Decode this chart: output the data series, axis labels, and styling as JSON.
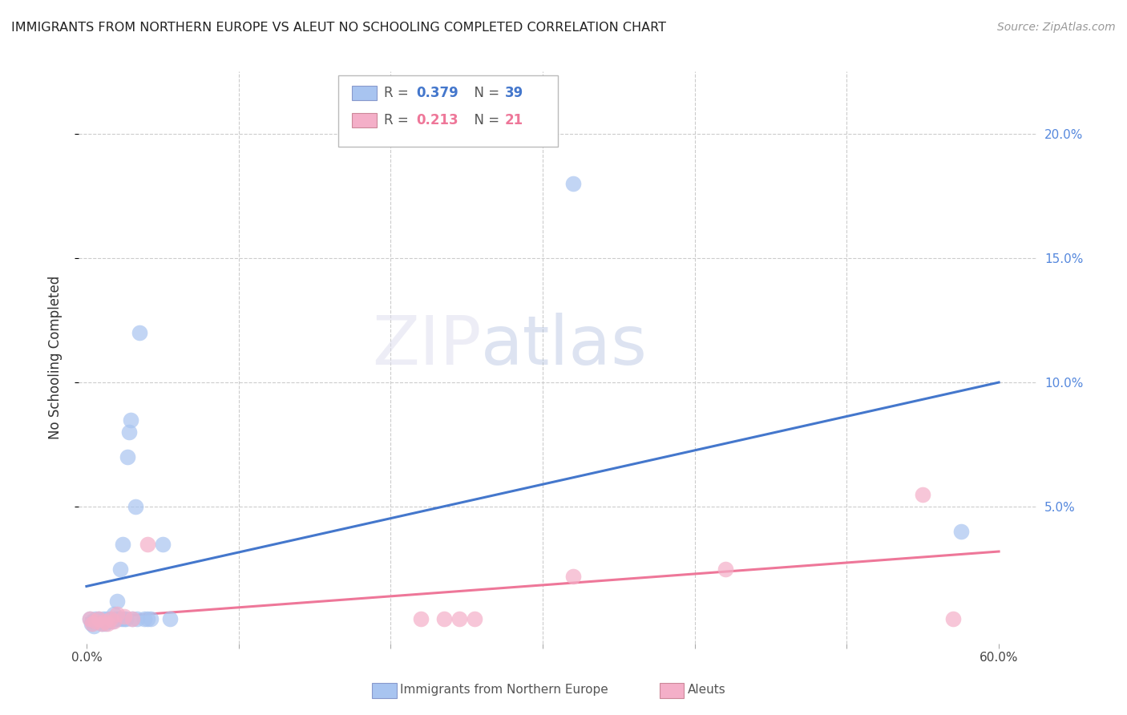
{
  "title": "IMMIGRANTS FROM NORTHERN EUROPE VS ALEUT NO SCHOOLING COMPLETED CORRELATION CHART",
  "source": "Source: ZipAtlas.com",
  "xlabel_blue": "Immigrants from Northern Europe",
  "xlabel_pink": "Aleuts",
  "ylabel": "No Schooling Completed",
  "xlim": [
    -0.005,
    0.625
  ],
  "ylim": [
    -0.005,
    0.225
  ],
  "xticks": [
    0.0,
    0.1,
    0.2,
    0.3,
    0.4,
    0.5,
    0.6
  ],
  "xticklabels": [
    "0.0%",
    "",
    "",
    "",
    "",
    "",
    "60.0%"
  ],
  "yticks": [
    0.05,
    0.1,
    0.15,
    0.2
  ],
  "yticklabels_right": [
    "5.0%",
    "10.0%",
    "15.0%",
    "20.0%"
  ],
  "legend_blue_r": "0.379",
  "legend_blue_n": "39",
  "legend_pink_r": "0.213",
  "legend_pink_n": "21",
  "blue_color": "#a8c4f0",
  "pink_color": "#f4afc8",
  "blue_line_color": "#4477cc",
  "pink_line_color": "#ee7799",
  "yaxis_color": "#5588dd",
  "watermark_zip": "ZIP",
  "watermark_atlas": "atlas",
  "blue_scatter_x": [
    0.002,
    0.003,
    0.004,
    0.005,
    0.006,
    0.007,
    0.008,
    0.009,
    0.01,
    0.011,
    0.012,
    0.013,
    0.014,
    0.015,
    0.016,
    0.017,
    0.018,
    0.019,
    0.02,
    0.021,
    0.022,
    0.023,
    0.024,
    0.025,
    0.026,
    0.027,
    0.028,
    0.029,
    0.03,
    0.032,
    0.033,
    0.035,
    0.038,
    0.04,
    0.042,
    0.05,
    0.055,
    0.575,
    0.32
  ],
  "blue_scatter_y": [
    0.005,
    0.003,
    0.004,
    0.002,
    0.005,
    0.004,
    0.005,
    0.004,
    0.003,
    0.005,
    0.003,
    0.005,
    0.004,
    0.004,
    0.005,
    0.004,
    0.007,
    0.005,
    0.012,
    0.005,
    0.025,
    0.005,
    0.035,
    0.005,
    0.005,
    0.07,
    0.08,
    0.085,
    0.005,
    0.05,
    0.005,
    0.12,
    0.005,
    0.005,
    0.005,
    0.035,
    0.005,
    0.04,
    0.18
  ],
  "pink_scatter_x": [
    0.002,
    0.004,
    0.006,
    0.008,
    0.01,
    0.012,
    0.014,
    0.016,
    0.018,
    0.02,
    0.025,
    0.03,
    0.04,
    0.22,
    0.235,
    0.245,
    0.255,
    0.32,
    0.42,
    0.55,
    0.57
  ],
  "pink_scatter_y": [
    0.005,
    0.003,
    0.004,
    0.005,
    0.003,
    0.004,
    0.003,
    0.005,
    0.004,
    0.007,
    0.006,
    0.005,
    0.035,
    0.005,
    0.005,
    0.005,
    0.005,
    0.022,
    0.025,
    0.055,
    0.005
  ],
  "blue_line_x0": 0.0,
  "blue_line_x1": 0.6,
  "blue_line_y0": 0.018,
  "blue_line_y1": 0.1,
  "pink_line_x0": 0.0,
  "pink_line_x1": 0.6,
  "pink_line_y0": 0.005,
  "pink_line_y1": 0.032
}
